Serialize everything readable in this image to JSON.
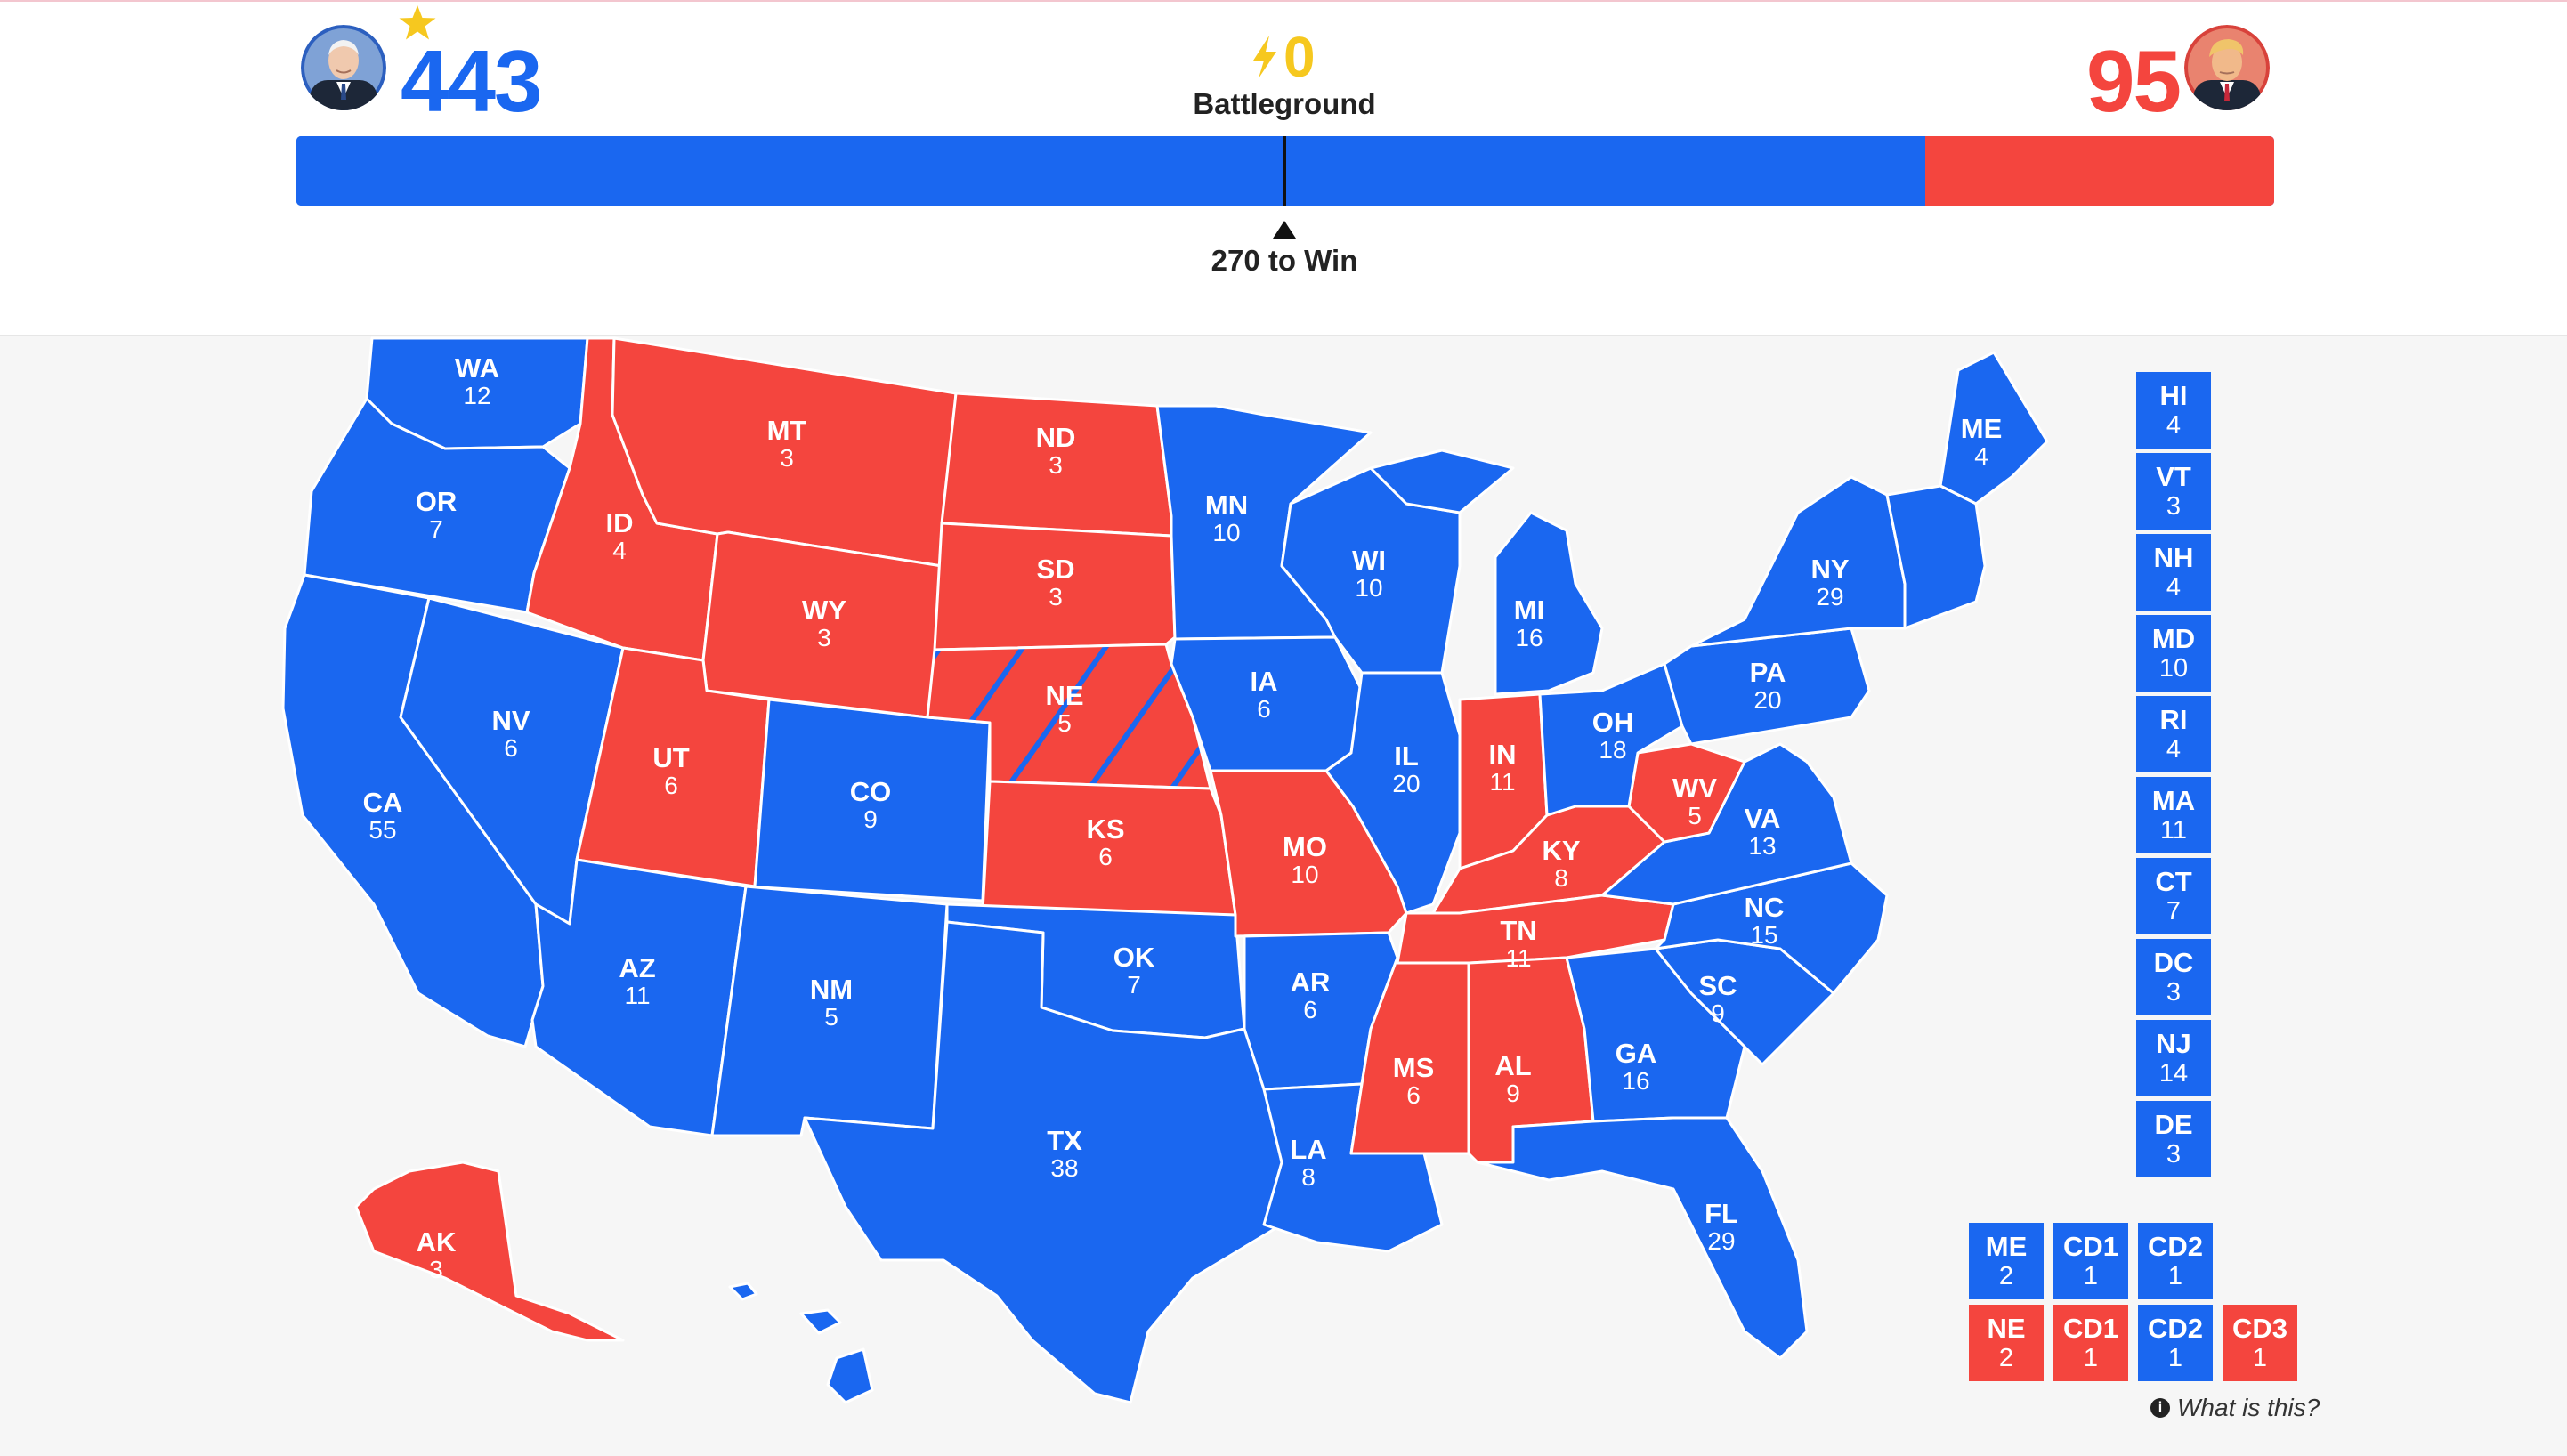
{
  "colors": {
    "dem": "#1a67f0",
    "rep": "#f4453e",
    "battleground": "#f6c81f"
  },
  "header": {
    "dem": {
      "votes": "443",
      "winner_icon": "star-icon",
      "candidate_photo": "candidate-portrait-dem"
    },
    "rep": {
      "votes": "95",
      "candidate_photo": "candidate-portrait-rep"
    },
    "battleground": {
      "votes": "0",
      "label": "Battleground",
      "icon": "lightning-bolt-icon"
    },
    "bar": {
      "dem_votes": 443,
      "rep_votes": 95,
      "total": 538
    },
    "win_label": "270 to Win"
  },
  "states": {
    "WA": {
      "abbr": "WA",
      "ev": "12",
      "party": "dem"
    },
    "OR": {
      "abbr": "OR",
      "ev": "7",
      "party": "dem"
    },
    "CA": {
      "abbr": "CA",
      "ev": "55",
      "party": "dem"
    },
    "NV": {
      "abbr": "NV",
      "ev": "6",
      "party": "dem"
    },
    "ID": {
      "abbr": "ID",
      "ev": "4",
      "party": "rep"
    },
    "MT": {
      "abbr": "MT",
      "ev": "3",
      "party": "rep"
    },
    "WY": {
      "abbr": "WY",
      "ev": "3",
      "party": "rep"
    },
    "UT": {
      "abbr": "UT",
      "ev": "6",
      "party": "rep"
    },
    "AZ": {
      "abbr": "AZ",
      "ev": "11",
      "party": "dem"
    },
    "CO": {
      "abbr": "CO",
      "ev": "9",
      "party": "dem"
    },
    "NM": {
      "abbr": "NM",
      "ev": "5",
      "party": "dem"
    },
    "ND": {
      "abbr": "ND",
      "ev": "3",
      "party": "rep"
    },
    "SD": {
      "abbr": "SD",
      "ev": "3",
      "party": "rep"
    },
    "NE": {
      "abbr": "NE",
      "ev": "5",
      "party": "rep"
    },
    "KS": {
      "abbr": "KS",
      "ev": "6",
      "party": "rep"
    },
    "OK": {
      "abbr": "OK",
      "ev": "7",
      "party": "dem"
    },
    "TX": {
      "abbr": "TX",
      "ev": "38",
      "party": "dem"
    },
    "MN": {
      "abbr": "MN",
      "ev": "10",
      "party": "dem"
    },
    "IA": {
      "abbr": "IA",
      "ev": "6",
      "party": "dem"
    },
    "MO": {
      "abbr": "MO",
      "ev": "10",
      "party": "rep"
    },
    "AR": {
      "abbr": "AR",
      "ev": "6",
      "party": "dem"
    },
    "LA": {
      "abbr": "LA",
      "ev": "8",
      "party": "dem"
    },
    "WI": {
      "abbr": "WI",
      "ev": "10",
      "party": "dem"
    },
    "IL": {
      "abbr": "IL",
      "ev": "20",
      "party": "dem"
    },
    "MS": {
      "abbr": "MS",
      "ev": "6",
      "party": "rep"
    },
    "MI": {
      "abbr": "MI",
      "ev": "16",
      "party": "dem"
    },
    "IN": {
      "abbr": "IN",
      "ev": "11",
      "party": "rep"
    },
    "KY": {
      "abbr": "KY",
      "ev": "8",
      "party": "rep"
    },
    "TN": {
      "abbr": "TN",
      "ev": "11",
      "party": "rep"
    },
    "AL": {
      "abbr": "AL",
      "ev": "9",
      "party": "rep"
    },
    "OH": {
      "abbr": "OH",
      "ev": "18",
      "party": "dem"
    },
    "WV": {
      "abbr": "WV",
      "ev": "5",
      "party": "rep"
    },
    "GA": {
      "abbr": "GA",
      "ev": "16",
      "party": "dem"
    },
    "FL": {
      "abbr": "FL",
      "ev": "29",
      "party": "dem"
    },
    "SC": {
      "abbr": "SC",
      "ev": "9",
      "party": "dem"
    },
    "NC": {
      "abbr": "NC",
      "ev": "15",
      "party": "dem"
    },
    "VA": {
      "abbr": "VA",
      "ev": "13",
      "party": "dem"
    },
    "PA": {
      "abbr": "PA",
      "ev": "20",
      "party": "dem"
    },
    "NY": {
      "abbr": "NY",
      "ev": "29",
      "party": "dem"
    },
    "ME": {
      "abbr": "ME",
      "ev": "4",
      "party": "dem"
    },
    "AK": {
      "abbr": "AK",
      "ev": "3",
      "party": "rep"
    }
  },
  "small_states": [
    {
      "abbr": "HI",
      "ev": "4",
      "party": "dem"
    },
    {
      "abbr": "VT",
      "ev": "3",
      "party": "dem"
    },
    {
      "abbr": "NH",
      "ev": "4",
      "party": "dem"
    },
    {
      "abbr": "MD",
      "ev": "10",
      "party": "dem"
    },
    {
      "abbr": "RI",
      "ev": "4",
      "party": "dem"
    },
    {
      "abbr": "MA",
      "ev": "11",
      "party": "dem"
    },
    {
      "abbr": "CT",
      "ev": "7",
      "party": "dem"
    },
    {
      "abbr": "DC",
      "ev": "3",
      "party": "dem"
    },
    {
      "abbr": "NJ",
      "ev": "14",
      "party": "dem"
    },
    {
      "abbr": "DE",
      "ev": "3",
      "party": "dem"
    }
  ],
  "districts": {
    "maine": [
      {
        "abbr": "ME",
        "ev": "2",
        "party": "dem"
      },
      {
        "abbr": "CD1",
        "ev": "1",
        "party": "dem"
      },
      {
        "abbr": "CD2",
        "ev": "1",
        "party": "dem"
      }
    ],
    "nebraska": [
      {
        "abbr": "NE",
        "ev": "2",
        "party": "rep"
      },
      {
        "abbr": "CD1",
        "ev": "1",
        "party": "rep"
      },
      {
        "abbr": "CD2",
        "ev": "1",
        "party": "dem"
      },
      {
        "abbr": "CD3",
        "ev": "1",
        "party": "rep"
      }
    ]
  },
  "footer": {
    "what_is_this": "What is this?",
    "info_icon": "info-icon"
  }
}
